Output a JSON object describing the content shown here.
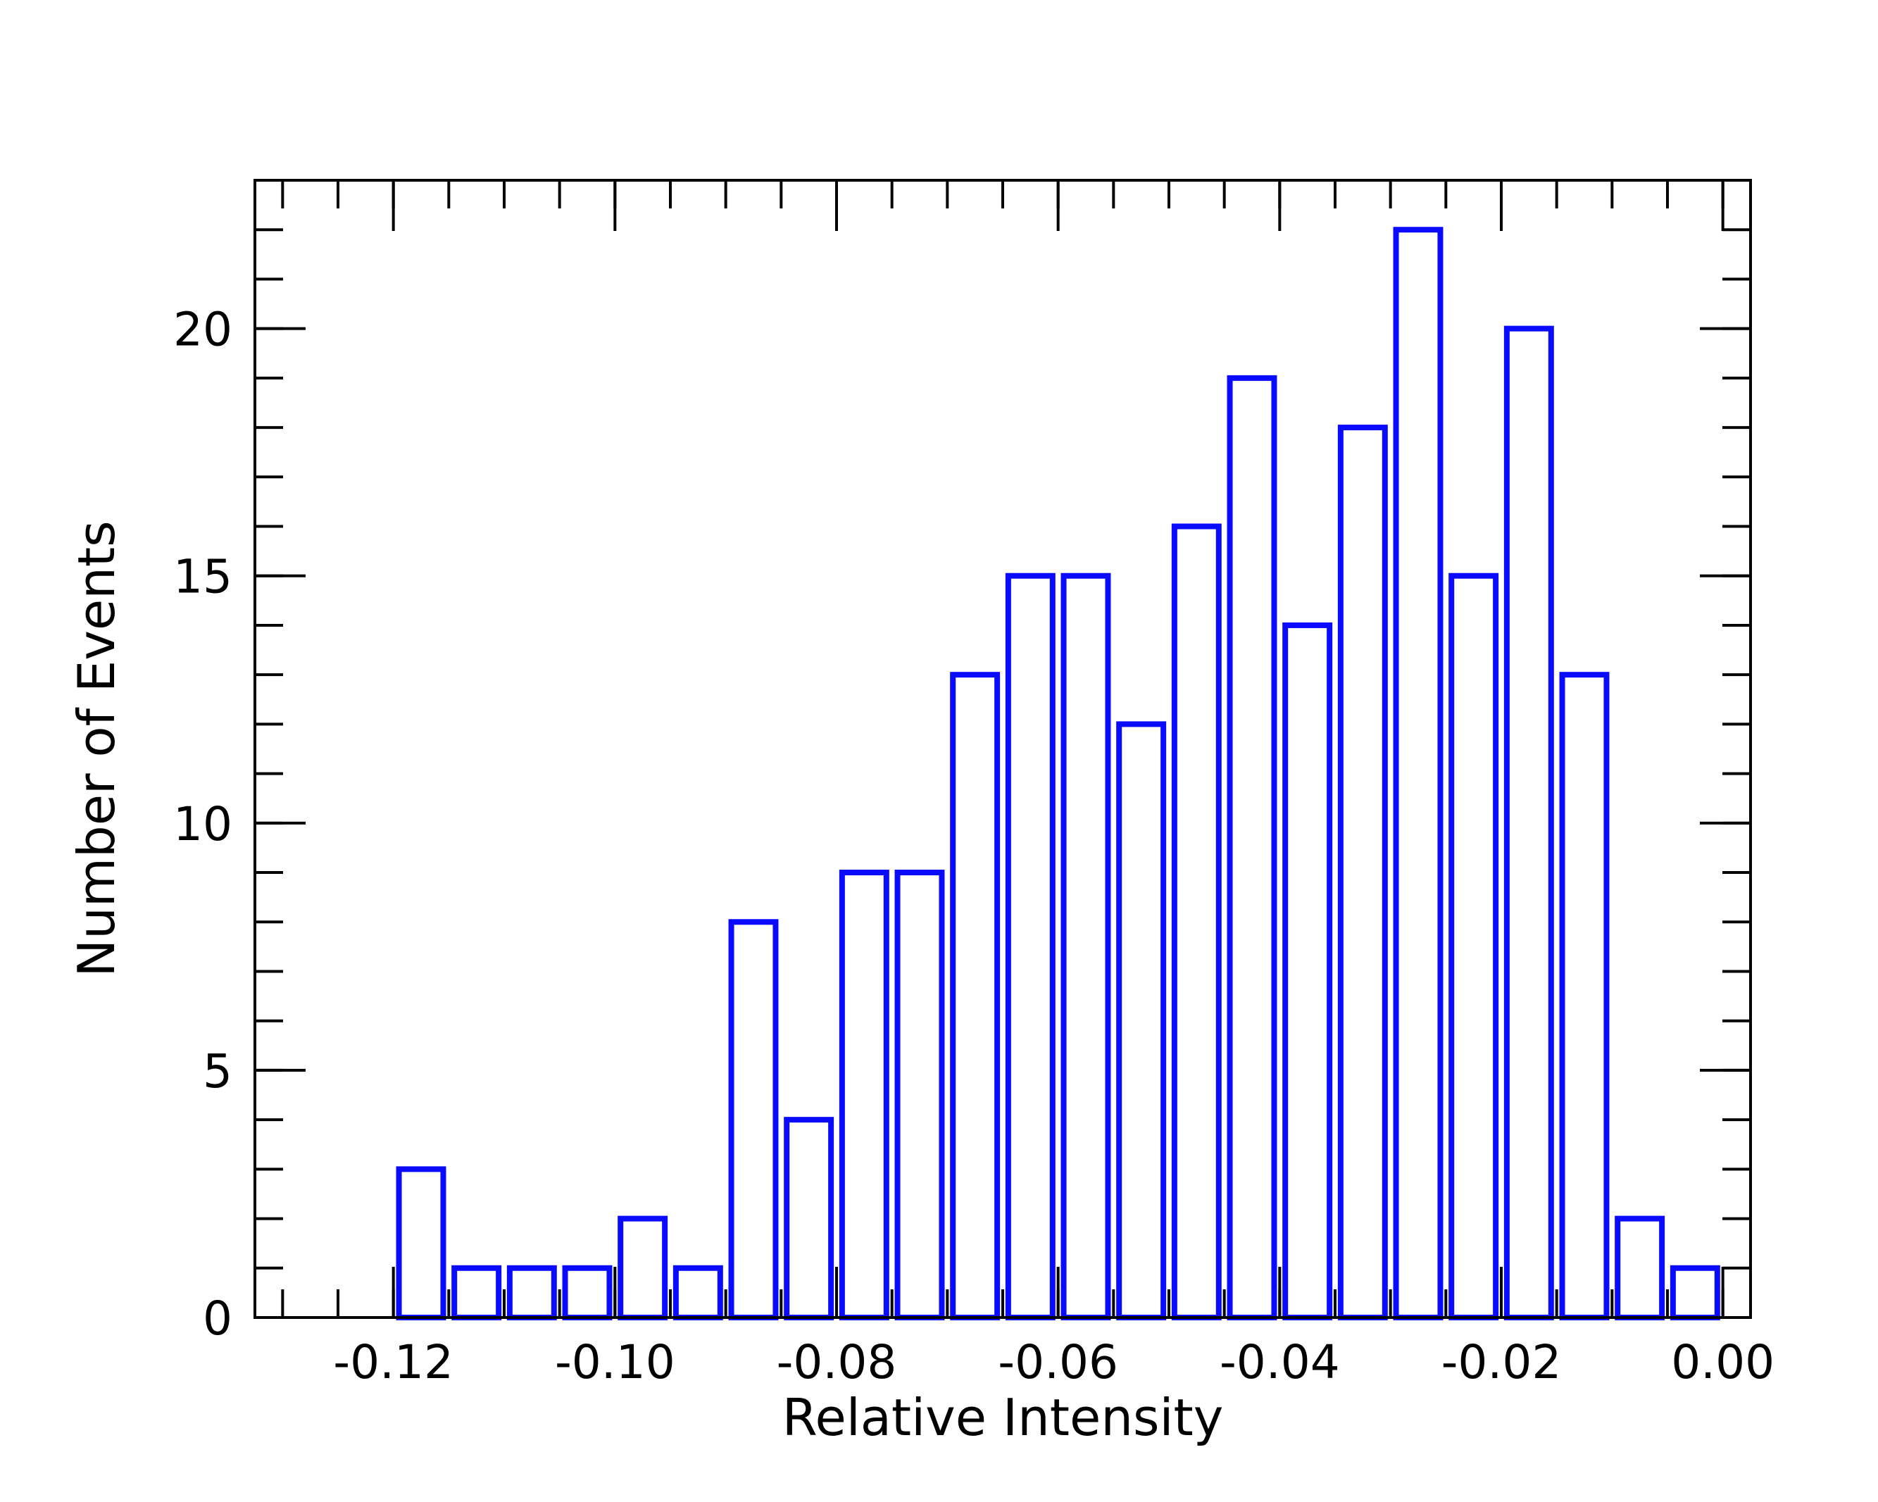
{
  "chart_data": {
    "type": "bar",
    "title": "",
    "xlabel": "Relative Intensity",
    "ylabel": "Number of Events",
    "xlim": [
      -0.1325,
      0.0025
    ],
    "ylim": [
      0,
      23
    ],
    "xticks": [
      -0.12,
      -0.1,
      -0.08,
      -0.06,
      -0.04,
      -0.02,
      0.0
    ],
    "xtick_labels": [
      "-0.12",
      "-0.10",
      "-0.08",
      "-0.06",
      "-0.04",
      "-0.02",
      "0.00"
    ],
    "x_minor_step": 0.005,
    "yticks": [
      0,
      5,
      10,
      15,
      20
    ],
    "ytick_labels": [
      "0",
      "5",
      "10",
      "15",
      "20"
    ],
    "y_minor_step": 1,
    "bin_width": 0.005,
    "bar_fraction": 0.8,
    "bar_color": "#0a0aff",
    "bin_centers": [
      -0.1275,
      -0.1225,
      -0.1175,
      -0.1125,
      -0.1075,
      -0.1025,
      -0.0975,
      -0.0925,
      -0.0875,
      -0.0825,
      -0.0775,
      -0.0725,
      -0.0675,
      -0.0625,
      -0.0575,
      -0.0525,
      -0.0475,
      -0.0425,
      -0.0375,
      -0.0325,
      -0.0275,
      -0.0225,
      -0.0175,
      -0.0125,
      -0.0075,
      -0.0025
    ],
    "values": [
      0,
      0,
      3,
      1,
      1,
      1,
      2,
      1,
      8,
      4,
      9,
      9,
      13,
      15,
      15,
      12,
      16,
      19,
      14,
      18,
      22,
      15,
      20,
      13,
      2,
      1
    ],
    "grid": false,
    "legend": "none"
  }
}
